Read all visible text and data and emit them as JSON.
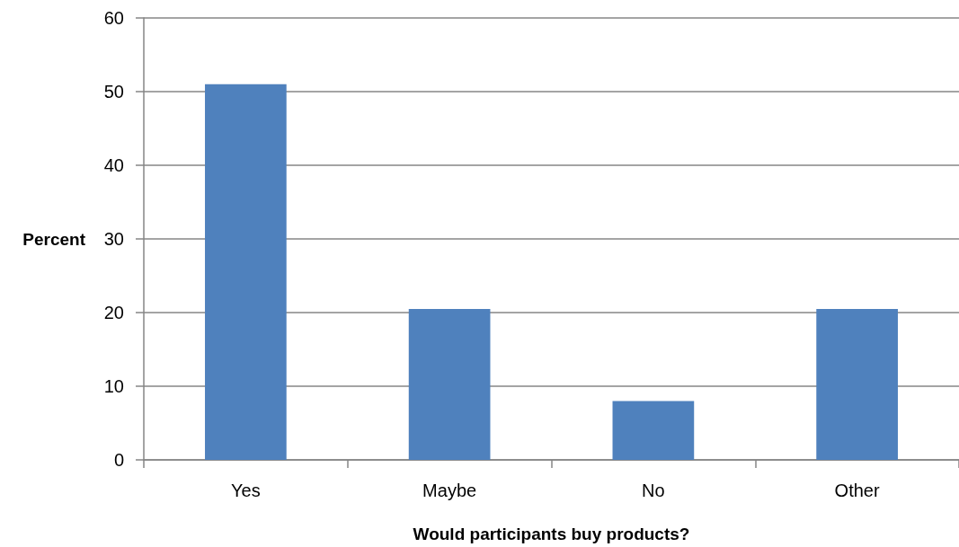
{
  "chart_data": {
    "type": "bar",
    "categories": [
      "Yes",
      "Maybe",
      "No",
      "Other"
    ],
    "values": [
      51,
      20.5,
      8,
      20.5
    ],
    "color": "#4f81bd",
    "xlabel": "Would participants buy products?",
    "ylabel": "Percent",
    "ylim": [
      0,
      60
    ],
    "yticks": [
      0,
      10,
      20,
      30,
      40,
      50,
      60
    ],
    "grid": "y"
  }
}
